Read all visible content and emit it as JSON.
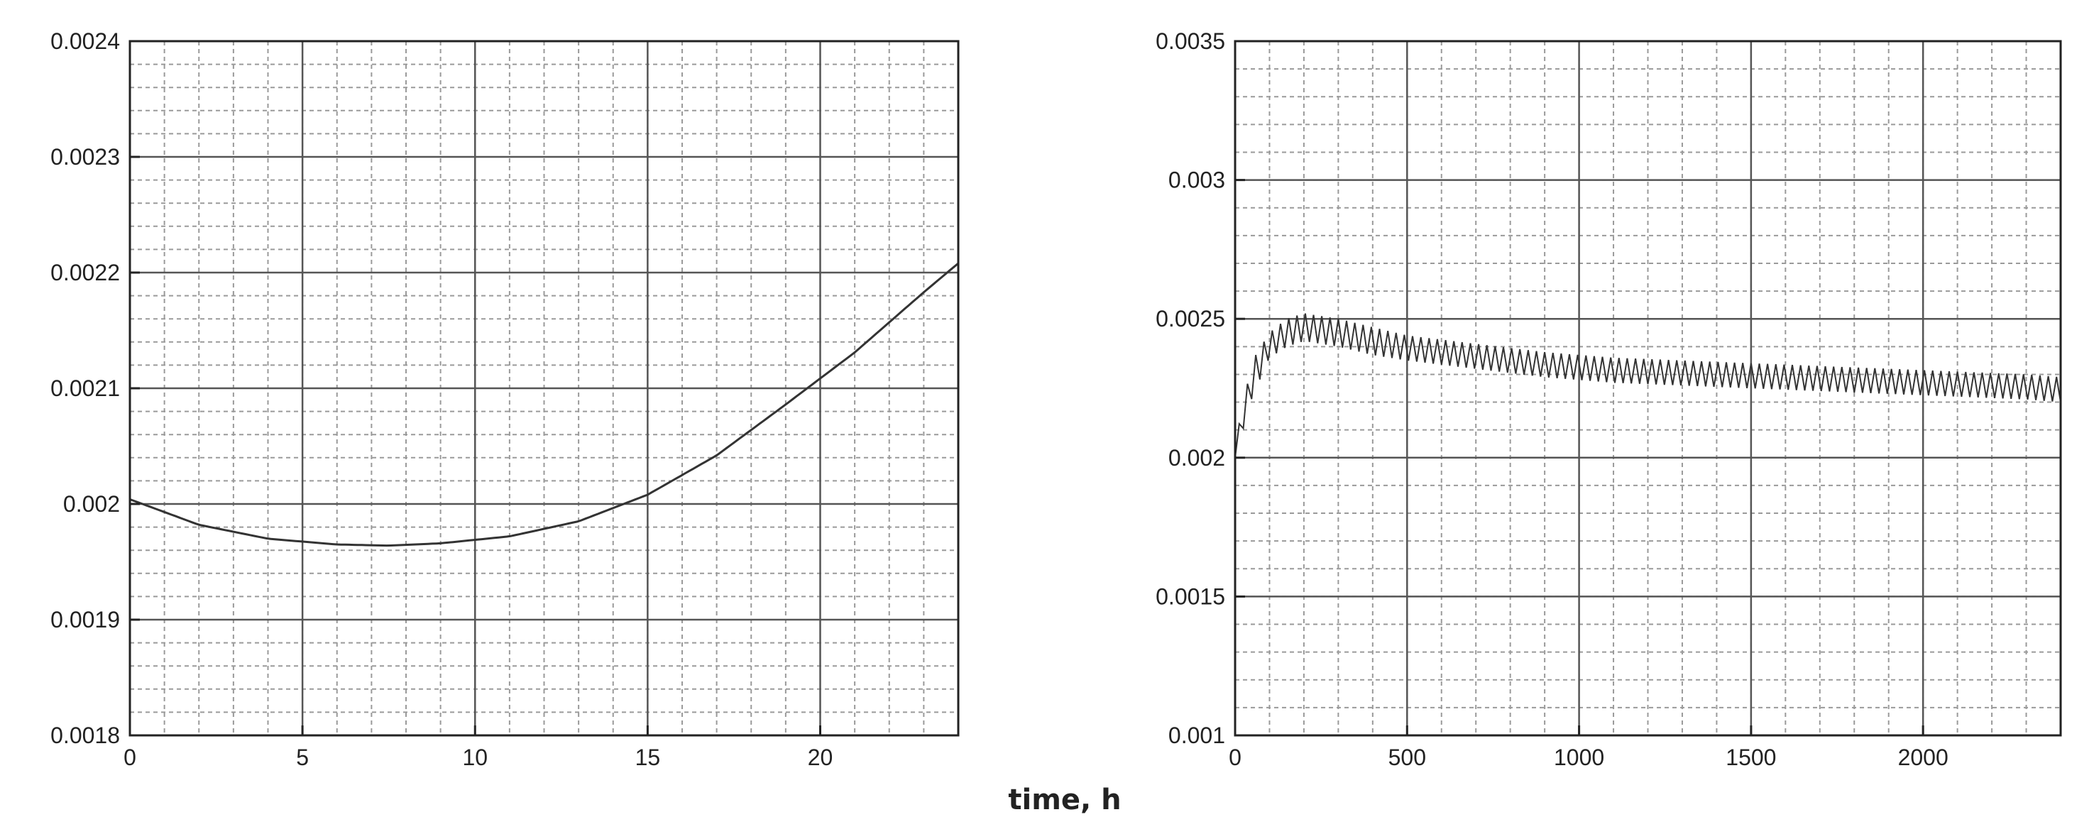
{
  "figure": {
    "xlabel": "time, h"
  },
  "style": {
    "line_color": "#333333",
    "major_grid_color": "#555555",
    "minor_grid_color": "#9a9a9a",
    "frame_color": "#222222"
  },
  "chart_data": [
    {
      "type": "line",
      "title": "",
      "xlabel": "",
      "ylabel": "",
      "xlim": [
        0,
        24
      ],
      "ylim": [
        0.0018,
        0.0024
      ],
      "x_ticks": [
        0,
        5,
        10,
        15,
        20
      ],
      "x_tick_labels": [
        "0",
        "5",
        "10",
        "15",
        "20"
      ],
      "y_ticks": [
        0.0018,
        0.0019,
        0.002,
        0.0021,
        0.0022,
        0.0023,
        0.0024
      ],
      "y_tick_labels": [
        "0.0018",
        "0.0019",
        "0.002",
        "0.0021",
        "0.0022",
        "0.0023",
        "0.0024"
      ],
      "grid": true,
      "minor_grid": true,
      "series": [
        {
          "x": [
            0,
            2,
            4,
            6,
            7.5,
            9,
            11,
            13,
            15,
            17,
            19,
            21,
            23,
            24
          ],
          "y": [
            0.002004,
            0.001982,
            0.00197,
            0.001965,
            0.001964,
            0.001966,
            0.001972,
            0.001985,
            0.002008,
            0.002042,
            0.002086,
            0.002131,
            0.002183,
            0.002208
          ]
        }
      ]
    },
    {
      "type": "line",
      "title": "",
      "xlabel": "",
      "ylabel": "",
      "xlim": [
        0,
        2400
      ],
      "ylim": [
        0.001,
        0.0035
      ],
      "x_ticks": [
        0,
        500,
        1000,
        1500,
        2000
      ],
      "x_tick_labels": [
        "0",
        "500",
        "1000",
        "1500",
        "2000"
      ],
      "y_ticks": [
        0.001,
        0.0015,
        0.002,
        0.0025,
        0.003,
        0.0035
      ],
      "y_tick_labels": [
        "0.001",
        "0.0015",
        "0.002",
        "0.0025",
        "0.003",
        "0.0035"
      ],
      "grid": true,
      "minor_grid": true,
      "oscillation_period": 24,
      "series": [
        {
          "upper": {
            "x": [
              0,
              50,
              100,
              150,
              200,
              250,
              300,
              400,
              500,
              700,
              900,
              1100,
              1300,
              1500,
              1700,
              1900,
              2100,
              2300,
              2400
            ],
            "y": [
              0.00205,
              0.00235,
              0.00245,
              0.0025,
              0.00252,
              0.00251,
              0.0025,
              0.00247,
              0.00244,
              0.00241,
              0.00238,
              0.00236,
              0.00235,
              0.00234,
              0.00233,
              0.00232,
              0.00231,
              0.0023,
              0.00229
            ]
          },
          "lower": {
            "x": [
              0,
              50,
              100,
              150,
              200,
              250,
              300,
              400,
              500,
              700,
              900,
              1100,
              1300,
              1500,
              1700,
              1900,
              2100,
              2300,
              2400
            ],
            "y": [
              0.002,
              0.00222,
              0.00236,
              0.0024,
              0.00242,
              0.00241,
              0.0024,
              0.00237,
              0.00235,
              0.00232,
              0.00229,
              0.00227,
              0.00226,
              0.00225,
              0.00224,
              0.00223,
              0.00222,
              0.00221,
              0.0022
            ]
          }
        }
      ]
    }
  ]
}
